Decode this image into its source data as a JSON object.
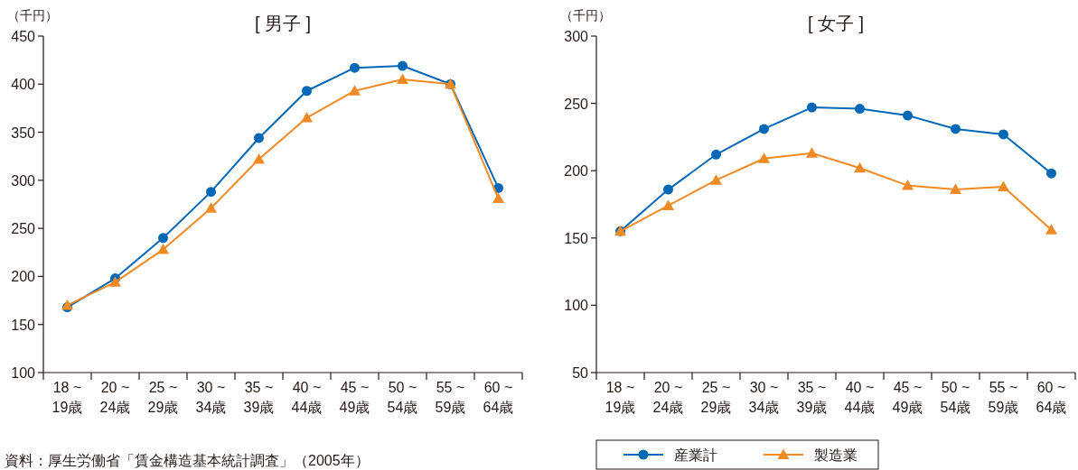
{
  "chart_data": [
    {
      "type": "line",
      "title": "[ 男子 ]",
      "ylabel": "（千円）",
      "categories": [
        "18 ~ 19歳",
        "20 ~ 24歳",
        "25 ~ 29歳",
        "30 ~ 34歳",
        "35 ~ 39歳",
        "40 ~ 44歳",
        "45 ~ 49歳",
        "50 ~ 54歳",
        "55 ~ 59歳",
        "60 ~ 64歳"
      ],
      "ylim": [
        100,
        450
      ],
      "yticks": [
        100,
        150,
        200,
        250,
        300,
        350,
        400,
        450
      ],
      "series": [
        {
          "color": "#0068b7",
          "marker": "circle",
          "values": [
            168,
            198,
            240,
            288,
            344,
            393,
            417,
            419,
            400,
            292
          ]
        },
        {
          "color": "#f08a24",
          "marker": "triangle",
          "values": [
            170,
            194,
            228,
            271,
            322,
            365,
            393,
            405,
            400,
            281
          ]
        }
      ],
      "annotations": [
        "資料：厚生労働省「賃金構造基本統計調査」（2005年）"
      ]
    },
    {
      "type": "line",
      "title": "[ 女子 ]",
      "ylabel": "（千円）",
      "categories": [
        "18 ~ 19歳",
        "20 ~ 24歳",
        "25 ~ 29歳",
        "30 ~ 34歳",
        "35 ~ 39歳",
        "40 ~ 44歳",
        "45 ~ 49歳",
        "50 ~ 54歳",
        "55 ~ 59歳",
        "60 ~ 64歳"
      ],
      "ylim": [
        50,
        300
      ],
      "yticks": [
        50,
        100,
        150,
        200,
        250,
        300
      ],
      "series": [
        {
          "name": "産業計",
          "color": "#0068b7",
          "marker": "circle",
          "values": [
            155,
            186,
            212,
            231,
            247,
            246,
            241,
            231,
            227,
            198
          ]
        },
        {
          "name": "製造業",
          "color": "#f08a24",
          "marker": "triangle",
          "values": [
            155,
            174,
            193,
            209,
            213,
            202,
            189,
            186,
            188,
            156
          ]
        }
      ],
      "legend": "bottom"
    }
  ]
}
